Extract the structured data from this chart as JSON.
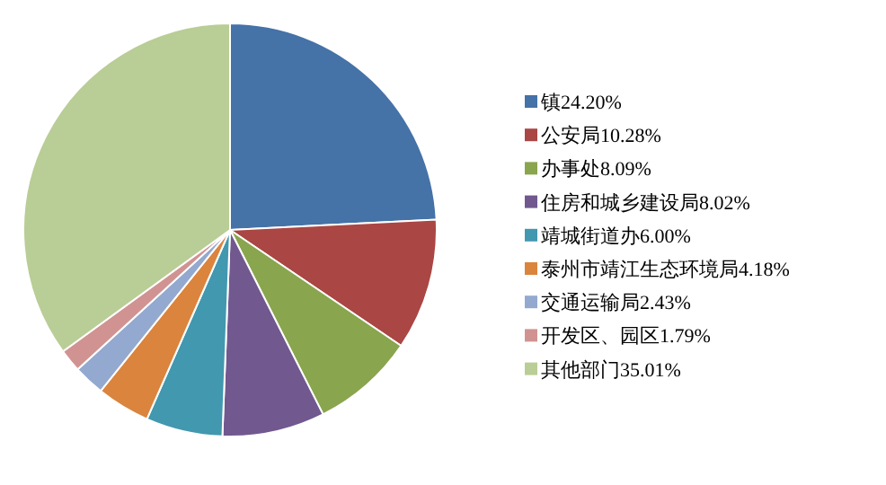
{
  "chart_data": {
    "type": "pie",
    "categories": [
      "镇24.20%",
      "公安局10.28%",
      "办事处8.09%",
      "住房和城乡建设局8.02%",
      "靖城街道办6.00%",
      "泰州市靖江生态环境局4.18%",
      "交通运输局2.43%",
      "开发区、园区1.79%",
      "其他部门35.01%"
    ],
    "values": [
      24.2,
      10.28,
      8.09,
      8.02,
      6.0,
      4.18,
      2.43,
      1.79,
      35.01
    ],
    "colors": [
      "#4572a7",
      "#aa4643",
      "#89a54e",
      "#71588f",
      "#4198af",
      "#db843d",
      "#93a9cf",
      "#d19392",
      "#b9cd96"
    ],
    "legend": "right"
  }
}
